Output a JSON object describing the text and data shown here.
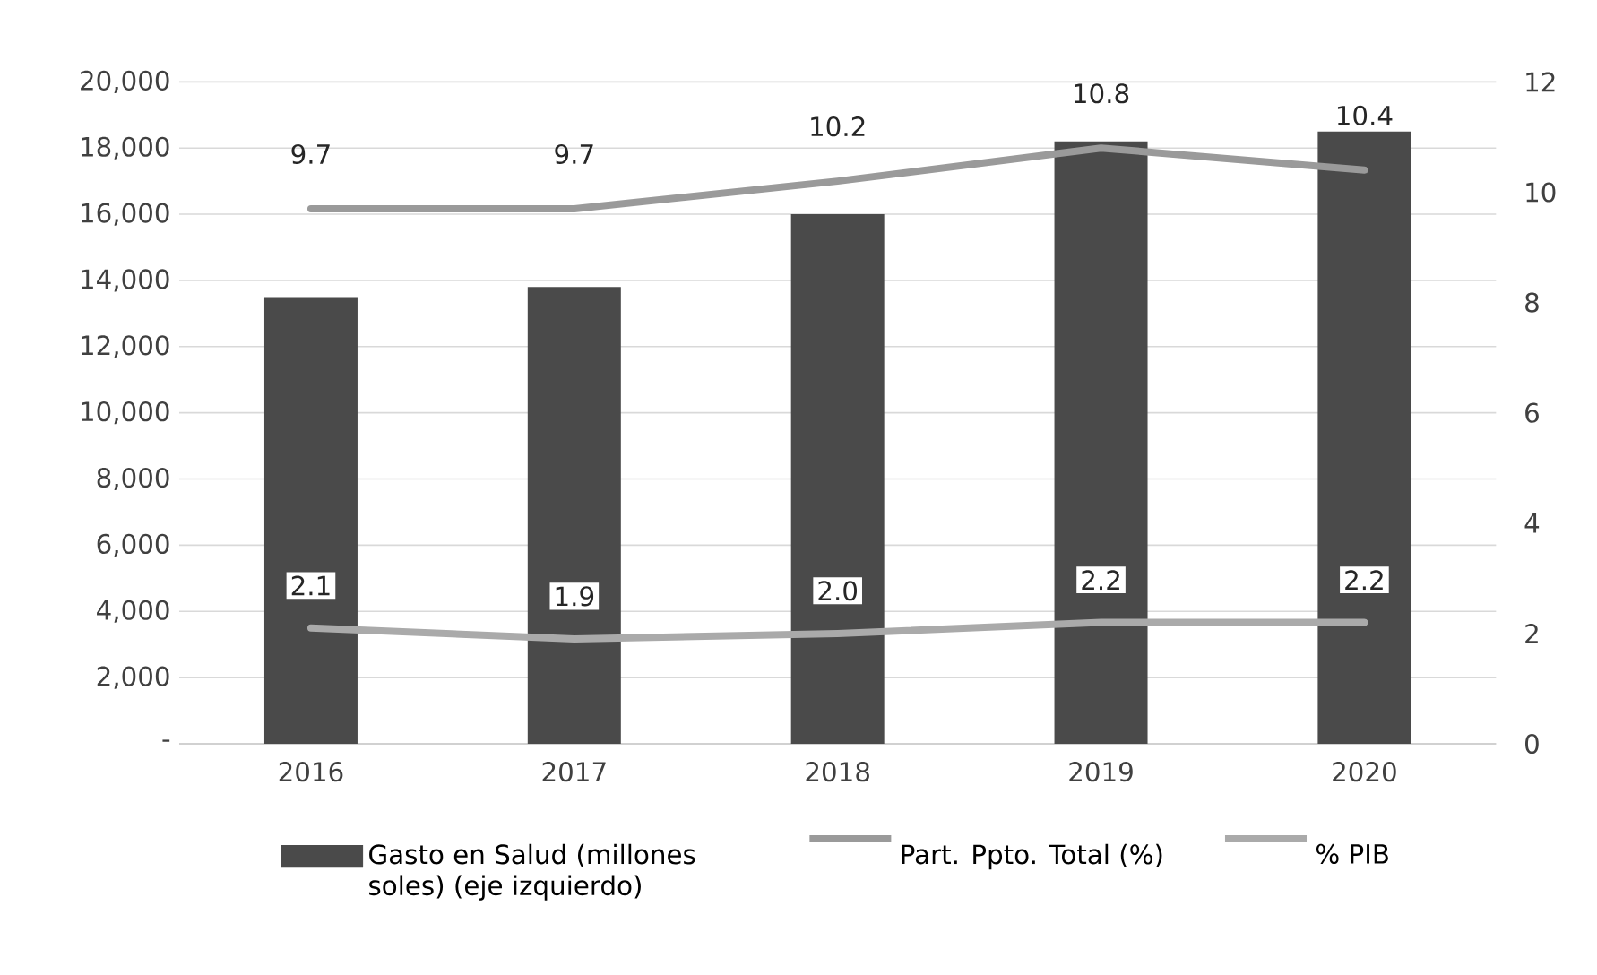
{
  "chart_data": {
    "type": "bar",
    "categories": [
      "2016",
      "2017",
      "2018",
      "2019",
      "2020"
    ],
    "series": [
      {
        "name": "Gasto en Salud (millones soles) (eje izquierdo)",
        "type": "bar",
        "color": "#4a4a4a",
        "values": [
          13500,
          13800,
          16000,
          18200,
          18500
        ]
      },
      {
        "name": "Part. Ppto. Total (%)",
        "type": "line",
        "axis": "y2",
        "color": "#9a9a9a",
        "values": [
          9.7,
          9.7,
          10.2,
          10.8,
          10.4
        ],
        "value_labels": [
          "9.7",
          "9.7",
          "10.2",
          "10.8",
          "10.4"
        ]
      },
      {
        "name": "% PIB",
        "type": "line",
        "axis": "y2",
        "color": "#aaaaaa",
        "values": [
          2.1,
          1.9,
          2.0,
          2.2,
          2.2
        ],
        "value_labels": [
          "2.1",
          "1.9",
          "2.0",
          "2.2",
          "2.2"
        ]
      }
    ],
    "ylim": [
      0,
      20000
    ],
    "yticks": [
      {
        "value": 0,
        "label": "-"
      },
      {
        "value": 2000,
        "label": "2,000"
      },
      {
        "value": 4000,
        "label": "4,000"
      },
      {
        "value": 6000,
        "label": "6,000"
      },
      {
        "value": 8000,
        "label": "8,000"
      },
      {
        "value": 10000,
        "label": "10,000"
      },
      {
        "value": 12000,
        "label": "12,000"
      },
      {
        "value": 14000,
        "label": "14,000"
      },
      {
        "value": 16000,
        "label": "16,000"
      },
      {
        "value": 18000,
        "label": "18,000"
      },
      {
        "value": 20000,
        "label": "20,000"
      }
    ],
    "y2lim": [
      0,
      12
    ],
    "y2ticks": [
      0,
      2,
      4,
      6,
      8,
      10,
      12
    ],
    "grid": "y",
    "legend": "bottom"
  }
}
